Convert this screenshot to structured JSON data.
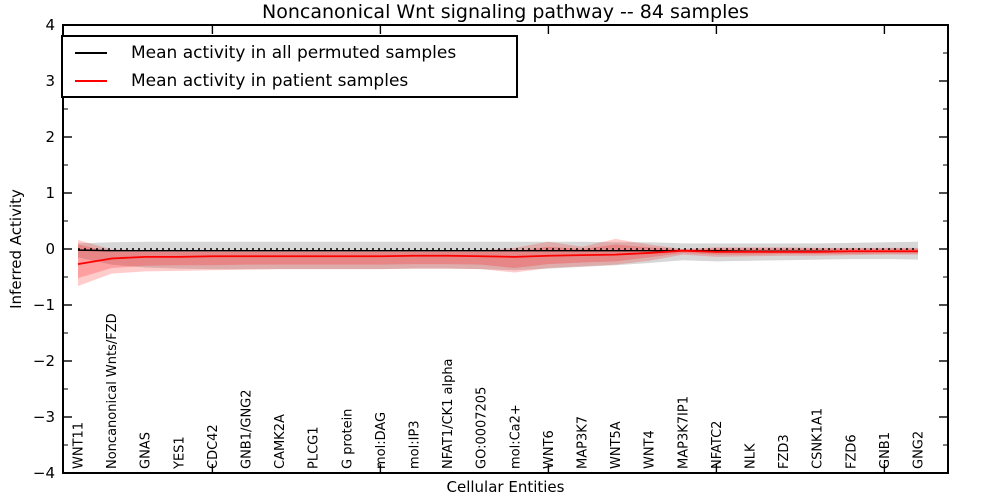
{
  "title": "Noncanonical Wnt signaling pathway -- 84 samples",
  "axes": {
    "ylabel": "Inferred Activity",
    "xlabel": "Cellular Entities"
  },
  "legend": {
    "entries": [
      {
        "label": "Mean activity in all permuted samples",
        "color": "#000000"
      },
      {
        "label": "Mean activity in patient samples",
        "color": "#ff0000"
      }
    ]
  },
  "chart_data": {
    "type": "line",
    "title": "Noncanonical Wnt signaling pathway -- 84 samples",
    "xlabel": "Cellular Entities",
    "ylabel": "Inferred Activity",
    "ylim": [
      -4,
      4
    ],
    "yticks": [
      4,
      3,
      2,
      1,
      0,
      -1,
      -2,
      -3,
      -4
    ],
    "ytick_labels": [
      "4",
      "3",
      "2",
      "1",
      "0",
      "−1",
      "−2",
      "−3",
      "−4"
    ],
    "xtick_major_indices": [
      4,
      9,
      14,
      19,
      24
    ],
    "grid": false,
    "legend_position": "upper left",
    "categories": [
      "WNT11",
      "Noncanonical Wnts/FZD",
      "GNAS",
      "YES1",
      "CDC42",
      "GNB1/GNG2",
      "CAMK2A",
      "PLCG1",
      "G protein",
      "mol:DAG",
      "mol:IP3",
      "NFAT1/CK1 alpha",
      "GO:0007205",
      "mol:Ca2+",
      "WNT6",
      "MAP3K7",
      "WNT5A",
      "WNT4",
      "MAP3K7IP1",
      "NFATC2",
      "NLK",
      "FZD3",
      "CSNK1A1",
      "FZD6",
      "GNB1",
      "GNG2"
    ],
    "series": [
      {
        "name": "zero-reference-line",
        "color": "#000000",
        "style": "dotted",
        "width": 1.6,
        "values": [
          0,
          0,
          0,
          0,
          0,
          0,
          0,
          0,
          0,
          0,
          0,
          0,
          0,
          0,
          0,
          0,
          0,
          0,
          0,
          0,
          0,
          0,
          0,
          0,
          0,
          0
        ]
      },
      {
        "name": "Mean activity in all permuted samples",
        "color": "#000000",
        "style": "solid",
        "width": 1.4,
        "values": [
          -0.02,
          -0.03,
          -0.03,
          -0.03,
          -0.03,
          -0.03,
          -0.03,
          -0.03,
          -0.03,
          -0.03,
          -0.03,
          -0.03,
          -0.03,
          -0.03,
          -0.03,
          -0.03,
          -0.03,
          -0.03,
          -0.03,
          -0.03,
          -0.04,
          -0.04,
          -0.04,
          -0.04,
          -0.04,
          -0.04
        ]
      },
      {
        "name": "Mean activity in patient samples",
        "color": "#ff0000",
        "style": "solid",
        "width": 1.8,
        "values": [
          -0.27,
          -0.17,
          -0.14,
          -0.14,
          -0.13,
          -0.13,
          -0.13,
          -0.13,
          -0.13,
          -0.13,
          -0.12,
          -0.12,
          -0.13,
          -0.14,
          -0.12,
          -0.11,
          -0.1,
          -0.07,
          -0.03,
          -0.05,
          -0.05,
          -0.05,
          -0.05,
          -0.04,
          -0.04,
          -0.04
        ]
      }
    ],
    "bands": [
      {
        "name": "permuted-samples-range",
        "color": "#b0b0b0",
        "opacity": 0.5,
        "top": [
          0.1,
          0.12,
          0.13,
          0.13,
          0.13,
          0.13,
          0.13,
          0.13,
          0.13,
          0.13,
          0.13,
          0.13,
          0.13,
          0.13,
          0.13,
          0.13,
          0.12,
          0.12,
          0.1,
          0.1,
          0.1,
          0.1,
          0.1,
          0.11,
          0.12,
          0.13
        ],
        "bottom": [
          -0.15,
          -0.28,
          -0.33,
          -0.35,
          -0.36,
          -0.36,
          -0.36,
          -0.36,
          -0.36,
          -0.36,
          -0.35,
          -0.35,
          -0.36,
          -0.38,
          -0.35,
          -0.32,
          -0.29,
          -0.25,
          -0.2,
          -0.22,
          -0.21,
          -0.2,
          -0.19,
          -0.18,
          -0.18,
          -0.19
        ]
      },
      {
        "name": "patient-samples-range-outer",
        "color": "#ff0000",
        "opacity": 0.2,
        "top": [
          0.16,
          -0.01,
          -0.02,
          -0.02,
          -0.02,
          -0.02,
          -0.02,
          -0.02,
          -0.02,
          -0.02,
          -0.02,
          -0.02,
          -0.02,
          0.02,
          0.13,
          0.04,
          0.18,
          0.08,
          0.0,
          0.03,
          0.03,
          0.03,
          0.02,
          0.02,
          0.02,
          0.02
        ],
        "bottom": [
          -0.66,
          -0.44,
          -0.4,
          -0.39,
          -0.38,
          -0.37,
          -0.36,
          -0.36,
          -0.36,
          -0.36,
          -0.35,
          -0.35,
          -0.36,
          -0.42,
          -0.34,
          -0.31,
          -0.28,
          -0.21,
          -0.1,
          -0.14,
          -0.13,
          -0.12,
          -0.12,
          -0.11,
          -0.1,
          -0.1
        ]
      },
      {
        "name": "patient-samples-range-inner",
        "color": "#ff0000",
        "opacity": 0.22,
        "top": [
          0.08,
          -0.05,
          -0.05,
          -0.05,
          -0.05,
          -0.05,
          -0.05,
          -0.05,
          -0.05,
          -0.05,
          -0.05,
          -0.05,
          -0.05,
          -0.04,
          0.04,
          0.0,
          0.08,
          0.03,
          -0.01,
          0.01,
          0.01,
          0.01,
          0.01,
          0.01,
          0.01,
          0.01
        ],
        "bottom": [
          -0.52,
          -0.34,
          -0.3,
          -0.29,
          -0.29,
          -0.28,
          -0.28,
          -0.28,
          -0.28,
          -0.28,
          -0.27,
          -0.27,
          -0.28,
          -0.34,
          -0.27,
          -0.24,
          -0.22,
          -0.15,
          -0.07,
          -0.1,
          -0.1,
          -0.09,
          -0.09,
          -0.09,
          -0.08,
          -0.08
        ]
      }
    ]
  }
}
